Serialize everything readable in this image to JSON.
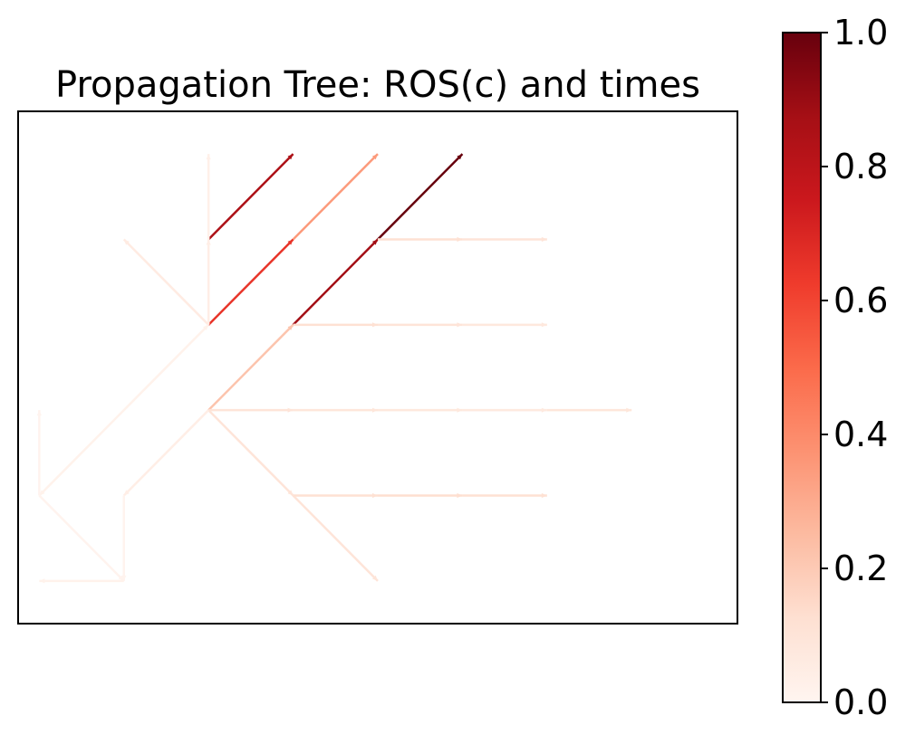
{
  "chart_data": {
    "type": "network",
    "title": "Propagation Tree: ROS(c) and times",
    "xlabel": "",
    "ylabel": "",
    "xlim": [
      -2.25,
      6.25
    ],
    "ylim": [
      -2.5,
      3.5
    ],
    "axes_ticks_visible": false,
    "grid": false,
    "colormap": "Reds",
    "colorbar": {
      "range": [
        0.0,
        1.0
      ],
      "ticks": [
        0.0,
        0.2,
        0.4,
        0.6,
        0.8,
        1.0
      ],
      "tick_labels": [
        "0.0",
        "0.2",
        "0.4",
        "0.6",
        "0.8",
        "1.0"
      ]
    },
    "edges": [
      {
        "from": [
          0,
          0
        ],
        "to": [
          1,
          1
        ],
        "c": 0.22
      },
      {
        "from": [
          1,
          1
        ],
        "to": [
          2,
          2
        ],
        "c": 0.88
      },
      {
        "from": [
          2,
          2
        ],
        "to": [
          3,
          3
        ],
        "c": 1.0
      },
      {
        "from": [
          2,
          2
        ],
        "to": [
          3,
          2
        ],
        "c": 0.12
      },
      {
        "from": [
          3,
          2
        ],
        "to": [
          4,
          2
        ],
        "c": 0.1
      },
      {
        "from": [
          1,
          1
        ],
        "to": [
          2,
          1
        ],
        "c": 0.12
      },
      {
        "from": [
          2,
          1
        ],
        "to": [
          3,
          1
        ],
        "c": 0.1
      },
      {
        "from": [
          3,
          1
        ],
        "to": [
          4,
          1
        ],
        "c": 0.08
      },
      {
        "from": [
          0,
          1
        ],
        "to": [
          1,
          2
        ],
        "c": 0.65
      },
      {
        "from": [
          1,
          2
        ],
        "to": [
          2,
          3
        ],
        "c": 0.35
      },
      {
        "from": [
          0,
          2
        ],
        "to": [
          1,
          3
        ],
        "c": 0.85
      },
      {
        "from": [
          0,
          1
        ],
        "to": [
          0,
          2
        ],
        "c": 0.04
      },
      {
        "from": [
          0,
          2
        ],
        "to": [
          0,
          3
        ],
        "c": 0.03
      },
      {
        "from": [
          0,
          1
        ],
        "to": [
          -1,
          2
        ],
        "c": 0.06
      },
      {
        "from": [
          0,
          0
        ],
        "to": [
          1,
          0
        ],
        "c": 0.1
      },
      {
        "from": [
          1,
          0
        ],
        "to": [
          2,
          0
        ],
        "c": 0.09
      },
      {
        "from": [
          2,
          0
        ],
        "to": [
          3,
          0
        ],
        "c": 0.08
      },
      {
        "from": [
          3,
          0
        ],
        "to": [
          4,
          0
        ],
        "c": 0.07
      },
      {
        "from": [
          4,
          0
        ],
        "to": [
          5,
          0
        ],
        "c": 0.09
      },
      {
        "from": [
          0,
          0
        ],
        "to": [
          1,
          -1
        ],
        "c": 0.1
      },
      {
        "from": [
          1,
          -1
        ],
        "to": [
          2,
          -2
        ],
        "c": 0.1
      },
      {
        "from": [
          1,
          -1
        ],
        "to": [
          2,
          -1
        ],
        "c": 0.12
      },
      {
        "from": [
          2,
          -1
        ],
        "to": [
          3,
          -1
        ],
        "c": 0.13
      },
      {
        "from": [
          3,
          -1
        ],
        "to": [
          4,
          -1
        ],
        "c": 0.12
      },
      {
        "from": [
          0,
          0
        ],
        "to": [
          -1,
          -1
        ],
        "c": 0.04
      },
      {
        "from": [
          -1,
          0
        ],
        "to": [
          0,
          1
        ],
        "c": 0.02
      },
      {
        "from": [
          -1,
          0
        ],
        "to": [
          -2,
          -1
        ],
        "c": 0.02
      },
      {
        "from": [
          -2,
          -1
        ],
        "to": [
          -2,
          0
        ],
        "c": 0.01
      },
      {
        "from": [
          -2,
          -1
        ],
        "to": [
          -1,
          -2
        ],
        "c": 0.01
      },
      {
        "from": [
          -1,
          -1
        ],
        "to": [
          -1,
          -2
        ],
        "c": 0.01
      },
      {
        "from": [
          -1,
          -2
        ],
        "to": [
          -2,
          -2
        ],
        "c": 0.02
      }
    ]
  }
}
